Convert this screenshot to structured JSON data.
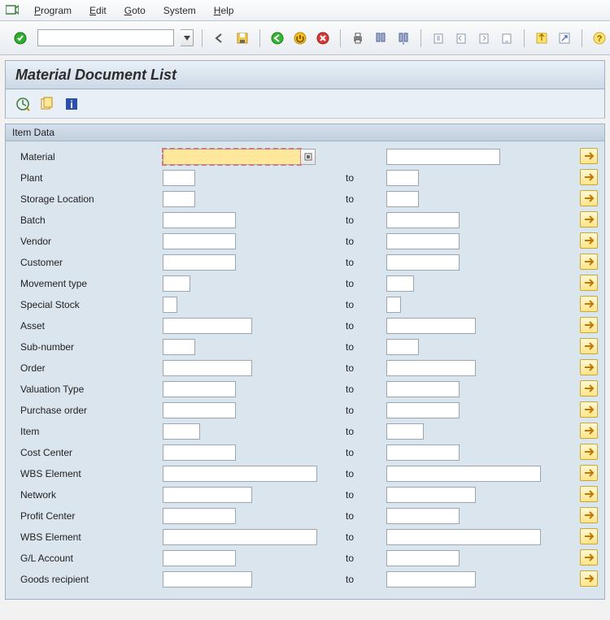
{
  "menu": {
    "items": [
      {
        "label": "Program",
        "u": 0
      },
      {
        "label": "Edit",
        "u": 0
      },
      {
        "label": "Goto",
        "u": 0
      },
      {
        "label": "System",
        "u": 0
      },
      {
        "label": "Help",
        "u": 0
      }
    ]
  },
  "page_title": "Material Document List",
  "group_title": "Item Data",
  "to_label": "to",
  "colors": {
    "focus_bg": "#ffe89b",
    "multi_btn_bg": "#ffe48a"
  },
  "fields": [
    {
      "label": "Material",
      "from_w": 170,
      "to_w": 140,
      "focus": true,
      "f4": true,
      "to_label": ""
    },
    {
      "label": "Plant",
      "from_w": 40,
      "to_w": 40
    },
    {
      "label": "Storage Location",
      "from_w": 40,
      "to_w": 40
    },
    {
      "label": "Batch",
      "from_w": 90,
      "to_w": 90
    },
    {
      "label": "Vendor",
      "from_w": 90,
      "to_w": 90
    },
    {
      "label": "Customer",
      "from_w": 90,
      "to_w": 90
    },
    {
      "label": "Movement type",
      "from_w": 34,
      "to_w": 34
    },
    {
      "label": "Special Stock",
      "from_w": 18,
      "to_w": 18
    },
    {
      "label": "Asset",
      "from_w": 110,
      "to_w": 110
    },
    {
      "label": "Sub-number",
      "from_w": 40,
      "to_w": 40
    },
    {
      "label": "Order",
      "from_w": 110,
      "to_w": 110
    },
    {
      "label": "Valuation Type",
      "from_w": 90,
      "to_w": 90
    },
    {
      "label": "Purchase order",
      "from_w": 90,
      "to_w": 90
    },
    {
      "label": "Item",
      "from_w": 46,
      "to_w": 46
    },
    {
      "label": "Cost Center",
      "from_w": 90,
      "to_w": 90
    },
    {
      "label": "WBS Element",
      "from_w": 190,
      "to_w": 190
    },
    {
      "label": "Network",
      "from_w": 110,
      "to_w": 110
    },
    {
      "label": "Profit Center",
      "from_w": 90,
      "to_w": 90
    },
    {
      "label": "WBS Element",
      "from_w": 190,
      "to_w": 190
    },
    {
      "label": "G/L Account",
      "from_w": 90,
      "to_w": 90
    },
    {
      "label": "Goods recipient",
      "from_w": 110,
      "to_w": 110
    }
  ]
}
